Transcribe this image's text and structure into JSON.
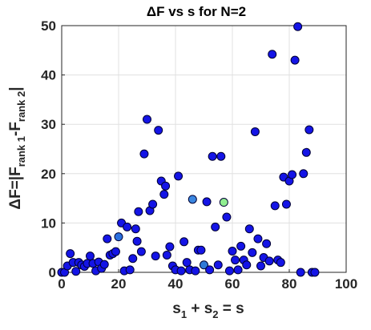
{
  "chart_data": {
    "type": "scatter",
    "title": "ΔF vs s for N=2",
    "xlabel": {
      "main1": "s",
      "sub1": "1",
      "plus": " + s",
      "sub2": "2",
      "rest": " = s"
    },
    "ylabel": {
      "main": "ΔF=|F",
      "sub1": "rank 1",
      "mid": "-F",
      "sub2": "rank 2",
      "end": "|"
    },
    "xlim": [
      0,
      100
    ],
    "ylim": [
      0,
      50
    ],
    "xticks": [
      0,
      20,
      40,
      60,
      80,
      100
    ],
    "yticks": [
      0,
      10,
      20,
      30,
      40,
      50
    ],
    "grid": true,
    "colors": {
      "point_default": "#1414e6",
      "point_edge": "#000033",
      "grid": "#e0e0e0",
      "axis": "#262626"
    },
    "points": [
      {
        "x": 0,
        "y": 0
      },
      {
        "x": 1,
        "y": 0
      },
      {
        "x": 2,
        "y": 1.3
      },
      {
        "x": 3,
        "y": 3.8
      },
      {
        "x": 4,
        "y": 2
      },
      {
        "x": 5,
        "y": 0.2
      },
      {
        "x": 6,
        "y": 2
      },
      {
        "x": 7,
        "y": 1.5
      },
      {
        "x": 8,
        "y": 1.2
      },
      {
        "x": 9,
        "y": 1.8
      },
      {
        "x": 10,
        "y": 3.3
      },
      {
        "x": 11,
        "y": 1.8
      },
      {
        "x": 12,
        "y": 0.3
      },
      {
        "x": 13,
        "y": 2.1
      },
      {
        "x": 14,
        "y": 0.8
      },
      {
        "x": 15,
        "y": 1.6
      },
      {
        "x": 16,
        "y": 6.8
      },
      {
        "x": 17,
        "y": 3.5
      },
      {
        "x": 18,
        "y": 3.8
      },
      {
        "x": 19,
        "y": 4.2
      },
      {
        "x": 20,
        "y": 7.2,
        "color": "#2a70e0"
      },
      {
        "x": 21,
        "y": 10
      },
      {
        "x": 22,
        "y": 0.3
      },
      {
        "x": 23,
        "y": 9.2
      },
      {
        "x": 24,
        "y": 0.5
      },
      {
        "x": 25,
        "y": 2.8
      },
      {
        "x": 26,
        "y": 8.8
      },
      {
        "x": 26.5,
        "y": 6.3
      },
      {
        "x": 27,
        "y": 12.3
      },
      {
        "x": 28,
        "y": 4.2
      },
      {
        "x": 29,
        "y": 24
      },
      {
        "x": 30,
        "y": 31
      },
      {
        "x": 31,
        "y": 12.5
      },
      {
        "x": 32,
        "y": 13.8
      },
      {
        "x": 33,
        "y": 3.3
      },
      {
        "x": 34,
        "y": 28.8
      },
      {
        "x": 35,
        "y": 18.5
      },
      {
        "x": 36,
        "y": 15.8
      },
      {
        "x": 36.5,
        "y": 17.5
      },
      {
        "x": 37,
        "y": 3.5
      },
      {
        "x": 38,
        "y": 5.2
      },
      {
        "x": 39,
        "y": 1.3
      },
      {
        "x": 40,
        "y": 0.5
      },
      {
        "x": 41,
        "y": 19.5
      },
      {
        "x": 42,
        "y": 0.3
      },
      {
        "x": 43,
        "y": 6.2
      },
      {
        "x": 44,
        "y": 2
      },
      {
        "x": 45,
        "y": 0.5
      },
      {
        "x": 46,
        "y": 14.8,
        "color": "#3a86e0"
      },
      {
        "x": 47,
        "y": 0.3
      },
      {
        "x": 48,
        "y": 4.5
      },
      {
        "x": 49,
        "y": 4.5
      },
      {
        "x": 50,
        "y": 1.5,
        "color": "#2f7ad8"
      },
      {
        "x": 51,
        "y": 14.3
      },
      {
        "x": 52,
        "y": 0.5
      },
      {
        "x": 53,
        "y": 23.5
      },
      {
        "x": 54,
        "y": 9.2
      },
      {
        "x": 55,
        "y": 1.5
      },
      {
        "x": 56,
        "y": 23.5
      },
      {
        "x": 57,
        "y": 14.2,
        "color": "#90ee90"
      },
      {
        "x": 58,
        "y": 11.2
      },
      {
        "x": 59,
        "y": 0.3
      },
      {
        "x": 60,
        "y": 4.3
      },
      {
        "x": 61,
        "y": 2.5
      },
      {
        "x": 62,
        "y": 0.5
      },
      {
        "x": 63,
        "y": 5.3
      },
      {
        "x": 64,
        "y": 2.5
      },
      {
        "x": 65,
        "y": 1.5
      },
      {
        "x": 66,
        "y": 8.8
      },
      {
        "x": 67,
        "y": 4
      },
      {
        "x": 68,
        "y": 28.5
      },
      {
        "x": 69,
        "y": 6.8
      },
      {
        "x": 70,
        "y": 1.3
      },
      {
        "x": 71,
        "y": 3
      },
      {
        "x": 72,
        "y": 5.8
      },
      {
        "x": 73,
        "y": 2.3
      },
      {
        "x": 74,
        "y": 44.2
      },
      {
        "x": 75,
        "y": 13.5
      },
      {
        "x": 76,
        "y": 2.5
      },
      {
        "x": 77,
        "y": 2
      },
      {
        "x": 78,
        "y": 19.3
      },
      {
        "x": 79,
        "y": 13.8
      },
      {
        "x": 80,
        "y": 18.5
      },
      {
        "x": 81,
        "y": 19.8
      },
      {
        "x": 82,
        "y": 43
      },
      {
        "x": 83,
        "y": 49.8
      },
      {
        "x": 84,
        "y": 0
      },
      {
        "x": 85,
        "y": 20
      },
      {
        "x": 86,
        "y": 24.3
      },
      {
        "x": 87,
        "y": 28.9
      },
      {
        "x": 88,
        "y": 0
      },
      {
        "x": 89,
        "y": 0
      }
    ]
  }
}
